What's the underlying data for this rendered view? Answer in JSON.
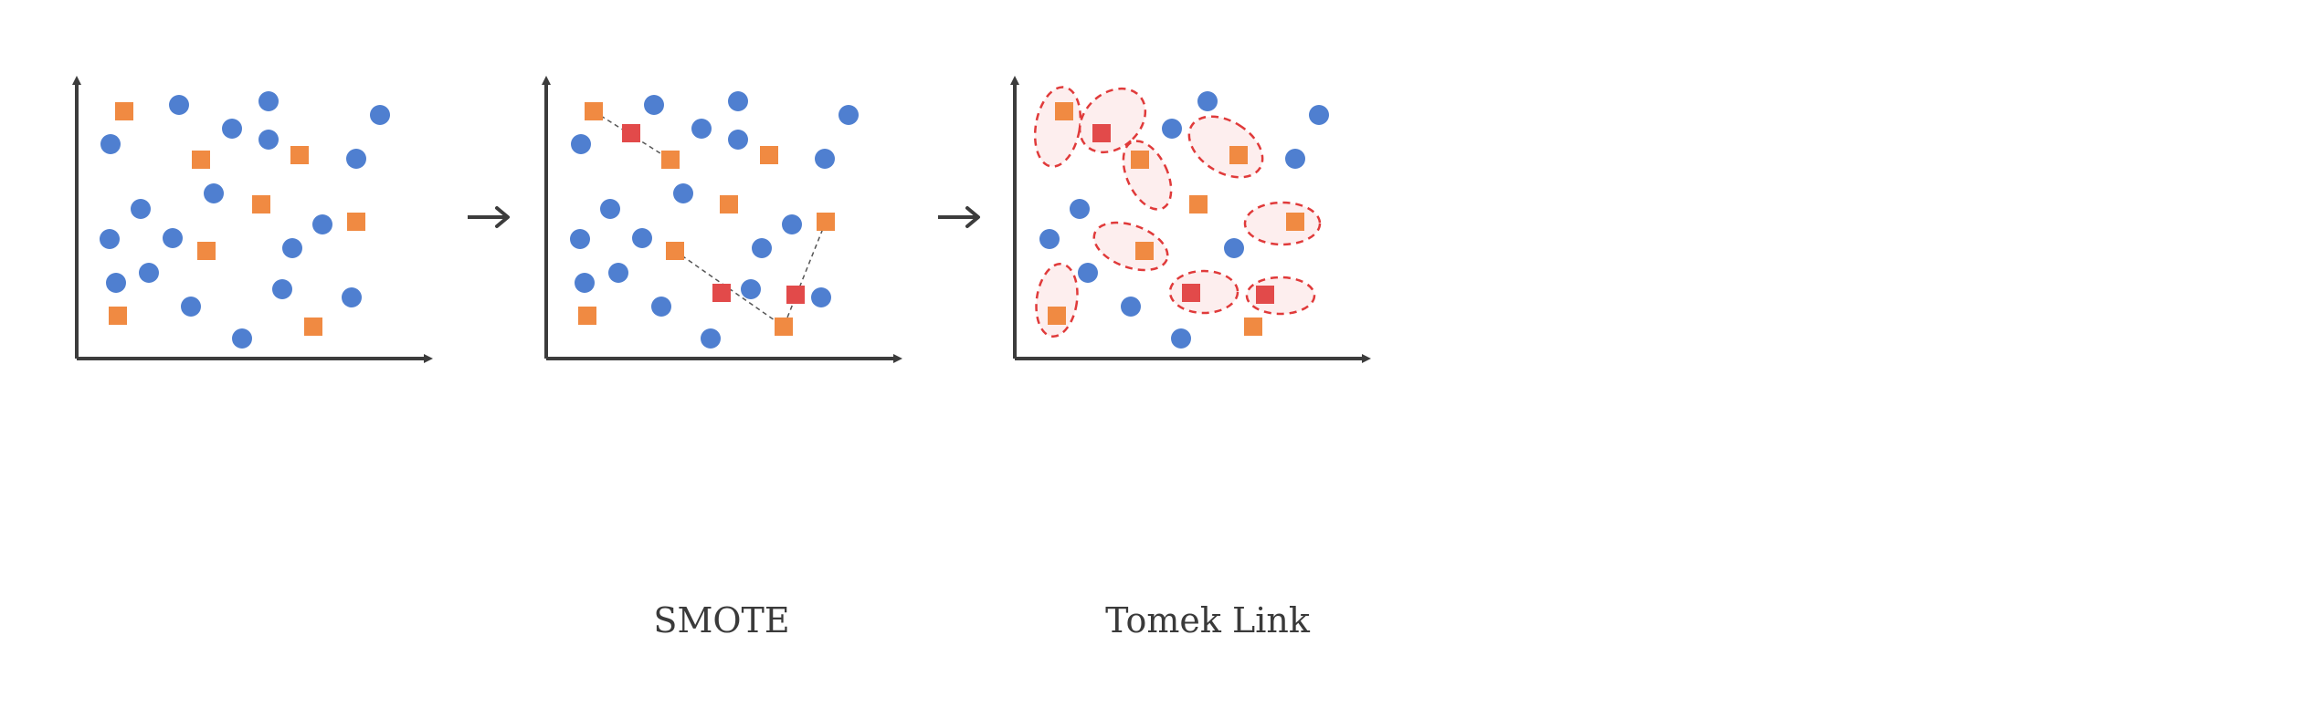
{
  "colors": {
    "majority": "#4f7fd0",
    "minority": "#f08a42",
    "synthetic": "#e24a4a",
    "axis": "#3c3c3c",
    "link": "#555555",
    "tomek_outline": "#e03a3a",
    "tomek_fill": "#fdeeee"
  },
  "panels": [
    {
      "id": "original",
      "caption": "",
      "majority": [
        [
          196,
          115
        ],
        [
          294,
          111
        ],
        [
          416,
          126
        ],
        [
          254,
          141
        ],
        [
          121,
          158
        ],
        [
          294,
          153
        ],
        [
          390,
          174
        ],
        [
          234,
          212
        ],
        [
          154,
          229
        ],
        [
          353,
          246
        ],
        [
          120,
          262
        ],
        [
          189,
          261
        ],
        [
          320,
          272
        ],
        [
          127,
          310
        ],
        [
          163,
          299
        ],
        [
          309,
          317
        ],
        [
          385,
          326
        ],
        [
          209,
          336
        ],
        [
          265,
          371
        ]
      ],
      "minority": [
        [
          136,
          122
        ],
        [
          220,
          175
        ],
        [
          328,
          170
        ],
        [
          286,
          224
        ],
        [
          390,
          243
        ],
        [
          226,
          275
        ],
        [
          129,
          346
        ],
        [
          343,
          358
        ]
      ],
      "synthetic": [],
      "links": [],
      "ellipses": []
    },
    {
      "id": "smote",
      "caption": "SMOTE",
      "majority": [
        [
          716,
          115
        ],
        [
          808,
          111
        ],
        [
          929,
          126
        ],
        [
          768,
          141
        ],
        [
          636,
          158
        ],
        [
          808,
          153
        ],
        [
          903,
          174
        ],
        [
          748,
          212
        ],
        [
          668,
          229
        ],
        [
          867,
          246
        ],
        [
          635,
          262
        ],
        [
          703,
          261
        ],
        [
          834,
          272
        ],
        [
          640,
          310
        ],
        [
          677,
          299
        ],
        [
          822,
          317
        ],
        [
          899,
          326
        ],
        [
          724,
          336
        ],
        [
          778,
          371
        ]
      ],
      "minority": [
        [
          650,
          122
        ],
        [
          734,
          175
        ],
        [
          842,
          170
        ],
        [
          798,
          224
        ],
        [
          904,
          243
        ],
        [
          739,
          275
        ],
        [
          643,
          346
        ],
        [
          858,
          358
        ]
      ],
      "synthetic": [
        [
          691,
          146
        ],
        [
          790,
          321
        ],
        [
          871,
          323
        ]
      ],
      "links": [
        [
          650,
          122,
          734,
          175
        ],
        [
          739,
          275,
          858,
          358
        ],
        [
          904,
          243,
          858,
          358
        ]
      ],
      "ellipses": []
    },
    {
      "id": "tomek",
      "caption": "Tomek Link",
      "majority": [
        [
          1322,
          111
        ],
        [
          1444,
          126
        ],
        [
          1283,
          141
        ],
        [
          1418,
          174
        ],
        [
          1182,
          229
        ],
        [
          1351,
          272
        ],
        [
          1149,
          262
        ],
        [
          1191,
          299
        ],
        [
          1238,
          336
        ],
        [
          1293,
          371
        ]
      ],
      "minority": [
        [
          1165,
          122
        ],
        [
          1248,
          175
        ],
        [
          1356,
          170
        ],
        [
          1312,
          224
        ],
        [
          1418,
          243
        ],
        [
          1253,
          275
        ],
        [
          1157,
          346
        ],
        [
          1372,
          358
        ]
      ],
      "synthetic": [
        [
          1206,
          146
        ],
        [
          1304,
          321
        ],
        [
          1385,
          323
        ]
      ],
      "links": [],
      "ellipses": [
        [
          1158,
          139,
          24,
          44,
          10
        ],
        [
          1218,
          132,
          30,
          40,
          48
        ],
        [
          1256,
          192,
          22,
          40,
          -25
        ],
        [
          1342,
          161,
          28,
          44,
          -58
        ],
        [
          1404,
          245,
          41,
          23,
          0
        ],
        [
          1238,
          270,
          42,
          23,
          20
        ],
        [
          1157,
          329,
          22,
          40,
          8
        ],
        [
          1318,
          320,
          37,
          23,
          0
        ],
        [
          1402,
          324,
          37,
          20,
          0
        ]
      ]
    }
  ],
  "arrows": [
    [
      512,
      238,
      556,
      238
    ],
    [
      1027,
      238,
      1071,
      238
    ]
  ]
}
